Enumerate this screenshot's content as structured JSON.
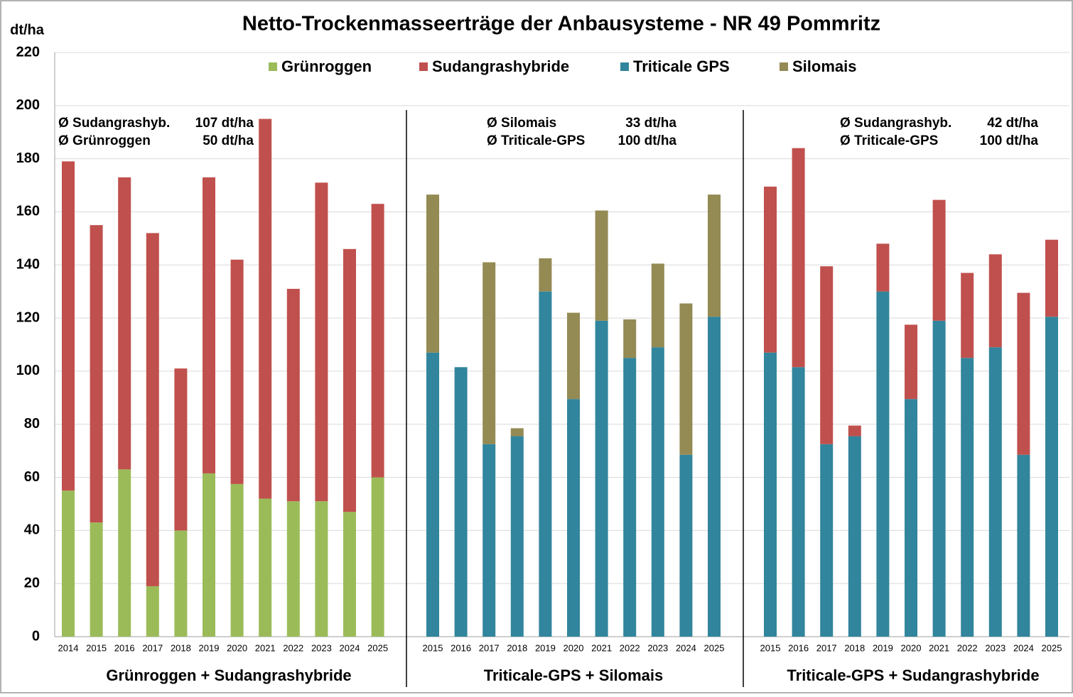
{
  "chart_data": {
    "type": "stacked_bar",
    "title": "Netto-Trockenmasseerträge der Anbausysteme  - NR 49 Pommritz",
    "ylabel": "dt/ha",
    "ylim": [
      0,
      220
    ],
    "yticks": [
      0,
      20,
      40,
      60,
      80,
      100,
      120,
      140,
      160,
      180,
      200,
      220
    ],
    "grid": true,
    "legend": "top",
    "groups": [
      {
        "label": "Grünroggen + Sudangrashybride",
        "categories": [
          "2014",
          "2015",
          "2016",
          "2017",
          "2018",
          "2019",
          "2020",
          "2021",
          "2022",
          "2023",
          "2024",
          "2025"
        ],
        "annotations": [
          [
            "Ø Sudangrashyb.",
            "107 dt/ha"
          ],
          [
            "Ø Grünroggen",
            "50 dt/ha"
          ]
        ]
      },
      {
        "label": "Triticale-GPS + Silomais",
        "categories": [
          "2015",
          "2016",
          "2017",
          "2018",
          "2019",
          "2020",
          "2021",
          "2022",
          "2023",
          "2024",
          "2025"
        ],
        "annotations": [
          [
            "Ø Silomais",
            "33 dt/ha"
          ],
          [
            "Ø Triticale-GPS",
            "100 dt/ha"
          ]
        ]
      },
      {
        "label": "Triticale-GPS + Sudangrashybride",
        "categories": [
          "2015",
          "2016",
          "2017",
          "2018",
          "2019",
          "2020",
          "2021",
          "2022",
          "2023",
          "2024",
          "2025"
        ],
        "annotations": [
          [
            "Ø Sudangrashyb.",
            "42 dt/ha"
          ],
          [
            "Ø Triticale-GPS",
            "100 dt/ha"
          ]
        ]
      }
    ],
    "series": [
      {
        "name": "Grünroggen",
        "color": "#9bbb59",
        "values": [
          55,
          43,
          63,
          19,
          40,
          61.5,
          57.5,
          52,
          51,
          51,
          47,
          60,
          null,
          null,
          null,
          null,
          null,
          null,
          null,
          null,
          null,
          null,
          null,
          null,
          null,
          null,
          null,
          null,
          null,
          null,
          null,
          null,
          null,
          null
        ]
      },
      {
        "name": "Triticale GPS",
        "color": "#31859c",
        "values": [
          null,
          null,
          null,
          null,
          null,
          null,
          null,
          null,
          null,
          null,
          null,
          null,
          107,
          101.5,
          72.5,
          75.5,
          130,
          89.5,
          119,
          105,
          109,
          68.5,
          120.5,
          107,
          101.5,
          72.5,
          75.5,
          130,
          89.5,
          119,
          105,
          109,
          68.5,
          120.5
        ]
      },
      {
        "name": "Sudangrashybride",
        "color": "#c0504d",
        "values": [
          124,
          112,
          110,
          133,
          61,
          111.5,
          84.5,
          143,
          80,
          120,
          99,
          103,
          null,
          null,
          null,
          null,
          null,
          null,
          null,
          null,
          null,
          null,
          null,
          62.5,
          82.5,
          67,
          4,
          18,
          28,
          45.5,
          32,
          35,
          61,
          29
        ]
      },
      {
        "name": "Silomais",
        "color": "#948a54",
        "values": [
          null,
          null,
          null,
          null,
          null,
          null,
          null,
          null,
          null,
          null,
          null,
          null,
          59.5,
          null,
          68.5,
          3,
          12.5,
          32.5,
          41.5,
          14.5,
          31.5,
          57,
          46,
          null,
          null,
          null,
          null,
          null,
          null,
          null,
          null,
          null,
          null,
          null
        ]
      }
    ]
  }
}
